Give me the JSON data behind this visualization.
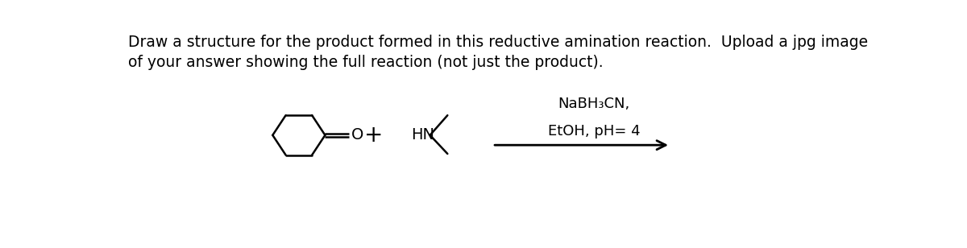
{
  "title_line1": "Draw a structure for the product formed in this reductive amination reaction.  Upload a jpg image",
  "title_line2": "of your answer showing the full reaction (not just the product).",
  "title_fontsize": 13.5,
  "title_color": "#000000",
  "bg_color": "#ffffff",
  "reagent_line1": "NaBH₃CN,",
  "reagent_line2": "EtOH, pH= 4",
  "fig_w": 12.0,
  "fig_h": 3.08,
  "dpi": 100
}
